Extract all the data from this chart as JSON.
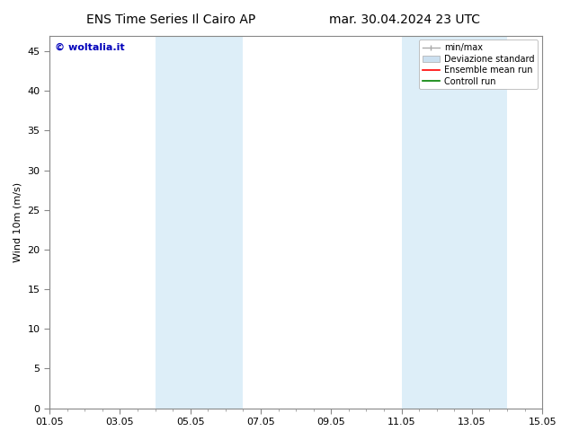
{
  "title_left": "ENS Time Series Il Cairo AP",
  "title_right": "mar. 30.04.2024 23 UTC",
  "ylabel": "Wind 10m (m/s)",
  "xtick_labels": [
    "01.05",
    "03.05",
    "05.05",
    "07.05",
    "09.05",
    "11.05",
    "13.05",
    "15.05"
  ],
  "xtick_positions": [
    0,
    2,
    4,
    6,
    8,
    10,
    12,
    14
  ],
  "ylim": [
    0,
    47
  ],
  "ytick_positions": [
    0,
    5,
    10,
    15,
    20,
    25,
    30,
    35,
    40,
    45
  ],
  "ytick_labels": [
    "0",
    "5",
    "10",
    "15",
    "20",
    "25",
    "30",
    "35",
    "40",
    "45"
  ],
  "shaded_regions": [
    [
      3.0,
      4.0
    ],
    [
      4.0,
      5.5
    ],
    [
      10.0,
      11.5
    ],
    [
      11.5,
      13.0
    ]
  ],
  "shaded_color": "#ddeef8",
  "watermark_text": "© woltalia.it",
  "watermark_color": "#0000bb",
  "legend_entries": [
    {
      "label": "min/max"
    },
    {
      "label": "Deviazione standard"
    },
    {
      "label": "Ensemble mean run"
    },
    {
      "label": "Controll run"
    }
  ],
  "bg_color": "#ffffff",
  "plot_bg_color": "#ffffff",
  "title_fontsize": 10,
  "axis_fontsize": 8,
  "tick_fontsize": 8
}
